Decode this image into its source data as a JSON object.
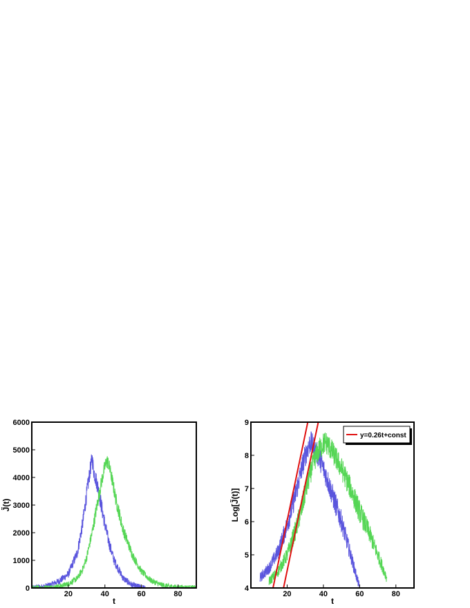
{
  "colors": {
    "blue_series": "#5a55dd",
    "green_series": "#55d655",
    "fit_line": "#e01010",
    "axis": "#000000"
  },
  "chart_data": [
    {
      "type": "line",
      "xlabel": "t",
      "ylabel": "J̃(t)",
      "xlim": [
        0,
        90
      ],
      "ylim": [
        0,
        6000
      ],
      "xticks": [
        20,
        40,
        60,
        80
      ],
      "yticks": [
        0,
        1000,
        2000,
        3000,
        4000,
        5000,
        6000
      ],
      "legend": null,
      "grid": false,
      "series": [
        {
          "color": "#5a55dd",
          "x": [
            0,
            5,
            10,
            15,
            20,
            25,
            28,
            30,
            32,
            33,
            34,
            36,
            38,
            40,
            42,
            45,
            50,
            55,
            60,
            62
          ],
          "y": [
            0,
            30,
            100,
            250,
            500,
            1300,
            2400,
            3400,
            4300,
            4700,
            4200,
            3700,
            3000,
            2300,
            1700,
            1000,
            350,
            100,
            20,
            0
          ],
          "noise": 300
        },
        {
          "color": "#55d655",
          "x": [
            0,
            10,
            15,
            20,
            25,
            28,
            30,
            33,
            36,
            38,
            40,
            41,
            42,
            44,
            46,
            50,
            55,
            60,
            65,
            70,
            75,
            80,
            85,
            90
          ],
          "y": [
            0,
            20,
            60,
            150,
            350,
            700,
            1100,
            2000,
            3100,
            3800,
            4400,
            4600,
            4500,
            3900,
            3200,
            2100,
            1200,
            600,
            280,
            130,
            60,
            30,
            15,
            5
          ],
          "noise": 260
        }
      ]
    },
    {
      "type": "line",
      "xlabel": "t",
      "ylabel": "Log[J̃(t)]",
      "xlim": [
        0,
        90
      ],
      "ylim": [
        4,
        9
      ],
      "xticks": [
        20,
        40,
        60,
        80
      ],
      "yticks": [
        4,
        5,
        6,
        7,
        8,
        9
      ],
      "legend": {
        "position": "top-right",
        "entries": [
          "y=0.26t+const"
        ]
      },
      "grid": false,
      "series": [
        {
          "color": "#5a55dd",
          "x": [
            5,
            10,
            15,
            20,
            25,
            28,
            30,
            32,
            33,
            34,
            36,
            38,
            40,
            42,
            45,
            50,
            55,
            58,
            60
          ],
          "y": [
            4.3,
            4.6,
            5.1,
            5.9,
            6.9,
            7.6,
            8.0,
            8.3,
            8.4,
            8.3,
            8.1,
            7.9,
            7.6,
            7.3,
            6.8,
            6.0,
            5.0,
            4.4,
            4.0
          ],
          "noise": 0.35
        },
        {
          "color": "#55d655",
          "x": [
            10,
            15,
            20,
            25,
            28,
            30,
            33,
            36,
            38,
            40,
            41,
            42,
            44,
            46,
            50,
            55,
            60,
            65,
            70,
            75
          ],
          "y": [
            4.2,
            4.5,
            5.0,
            5.8,
            6.4,
            6.9,
            7.5,
            8.0,
            8.2,
            8.35,
            8.4,
            8.35,
            8.2,
            8.0,
            7.6,
            7.0,
            6.3,
            5.7,
            5.0,
            4.3
          ],
          "noise": 0.35
        },
        {
          "name": "y=0.26t+const",
          "color": "#e01010",
          "x": [
            12.2,
            31.4
          ],
          "y": [
            4.0,
            9.0
          ],
          "noise": 0
        },
        {
          "name": "y=0.26t+const",
          "color": "#e01010",
          "x": [
            18.0,
            37.2
          ],
          "y": [
            4.0,
            9.0
          ],
          "noise": 0
        }
      ]
    }
  ]
}
